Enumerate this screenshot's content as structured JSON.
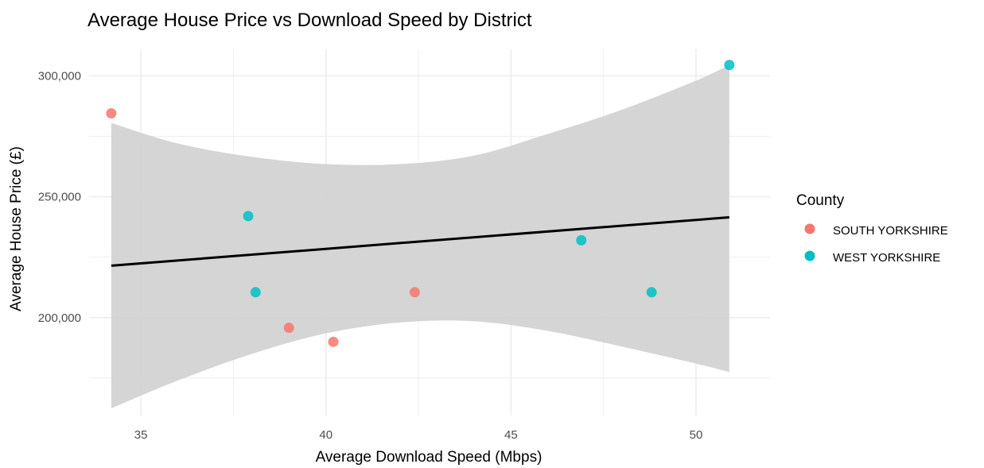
{
  "chart_data": {
    "type": "scatter",
    "title": "Average House Price vs Download Speed by District",
    "xlabel": "Average Download Speed (Mbps)",
    "ylabel": "Average House Price (£)",
    "xlim": [
      33.6,
      52.0
    ],
    "ylim": [
      159500,
      311000
    ],
    "x_ticks": [
      35,
      40,
      45,
      50
    ],
    "x_tick_labels": [
      "35",
      "40",
      "45",
      "50"
    ],
    "y_ticks": [
      200000,
      250000,
      300000
    ],
    "y_tick_labels": [
      "200,000",
      "250,000",
      "300,000"
    ],
    "grid": true,
    "legend": {
      "title": "County",
      "position": "right",
      "entries": [
        "SOUTH YORKSHIRE",
        "WEST YORKSHIRE"
      ]
    },
    "series": [
      {
        "name": "SOUTH YORKSHIRE",
        "color": "#F8766D",
        "points": [
          {
            "x": 34.2,
            "y": 284500
          },
          {
            "x": 39.0,
            "y": 195800
          },
          {
            "x": 40.2,
            "y": 190000
          },
          {
            "x": 42.4,
            "y": 210500
          }
        ]
      },
      {
        "name": "WEST YORKSHIRE",
        "color": "#00BFC4",
        "points": [
          {
            "x": 37.9,
            "y": 242000
          },
          {
            "x": 38.1,
            "y": 210500
          },
          {
            "x": 46.9,
            "y": 232000
          },
          {
            "x": 48.8,
            "y": 210500
          },
          {
            "x": 50.9,
            "y": 304500
          }
        ]
      }
    ],
    "trend_line": {
      "color": "#000000",
      "start": {
        "x": 34.2,
        "y": 221500
      },
      "end": {
        "x": 50.9,
        "y": 241500
      }
    },
    "confidence_band": {
      "color": "#d3d3d3",
      "upper": [
        [
          34.2,
          280500
        ],
        [
          36.0,
          272000
        ],
        [
          38.0,
          266500
        ],
        [
          40.0,
          263500
        ],
        [
          42.0,
          263500
        ],
        [
          44.0,
          267000
        ],
        [
          46.0,
          276000
        ],
        [
          48.0,
          286000
        ],
        [
          50.0,
          298000
        ],
        [
          50.9,
          304500
        ]
      ],
      "lower": [
        [
          34.2,
          162500
        ],
        [
          36.0,
          174000
        ],
        [
          38.0,
          185000
        ],
        [
          40.0,
          193500
        ],
        [
          42.0,
          198000
        ],
        [
          44.0,
          198500
        ],
        [
          46.0,
          194500
        ],
        [
          48.0,
          188000
        ],
        [
          50.0,
          181000
        ],
        [
          50.9,
          177500
        ]
      ]
    }
  }
}
